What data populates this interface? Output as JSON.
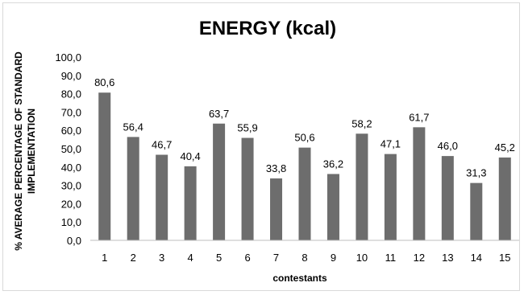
{
  "chart_data": {
    "type": "bar",
    "title": "ENERGY (kcal)",
    "xlabel": "contestants",
    "ylabel_lines": [
      "% AVERAGE PERCENTAGE OF STANDARD",
      "IMPLEMENTATION"
    ],
    "categories": [
      "1",
      "2",
      "3",
      "4",
      "5",
      "6",
      "7",
      "8",
      "9",
      "10",
      "11",
      "12",
      "13",
      "14",
      "15"
    ],
    "values": [
      80.6,
      56.4,
      46.7,
      40.4,
      63.7,
      55.9,
      33.8,
      50.6,
      36.2,
      58.2,
      47.1,
      61.7,
      46.0,
      31.3,
      45.2
    ],
    "value_labels": [
      "80,6",
      "56,4",
      "46,7",
      "40,4",
      "63,7",
      "55,9",
      "33,8",
      "50,6",
      "36,2",
      "58,2",
      "47,1",
      "61,7",
      "46,0",
      "31,3",
      "45,2"
    ],
    "ylim": [
      0,
      100
    ],
    "yticks": [
      "0,0",
      "10,0",
      "20,0",
      "30,0",
      "40,0",
      "50,0",
      "60,0",
      "70,0",
      "80,0",
      "90,0",
      "100,0"
    ],
    "grid": false,
    "legend": "none",
    "bar_color": "#6d6d6d"
  }
}
